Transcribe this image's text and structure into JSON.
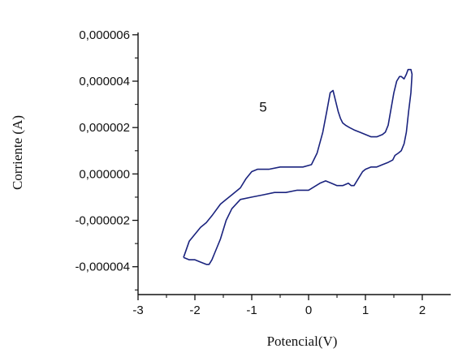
{
  "chart_data": {
    "type": "line",
    "xlabel": "Potencial(V)",
    "ylabel": "Corriente (A)",
    "xlim": [
      -3,
      2.5
    ],
    "ylim": [
      -5.2e-06,
      6.1e-06
    ],
    "x_ticks": [
      -3,
      -2,
      -1,
      0,
      1,
      2
    ],
    "x_tick_labels": [
      "-3",
      "-2",
      "-1",
      "0",
      "1",
      "2"
    ],
    "y_ticks": [
      6e-06,
      4e-06,
      2e-06,
      0.0,
      -2e-06,
      -4e-06
    ],
    "y_tick_labels": [
      "0,000006",
      "0,000004",
      "0,000002",
      "0,000000",
      "-0,000002",
      "-0,000004"
    ],
    "annotations": [
      {
        "text": "5",
        "x": -0.8,
        "y": 2.9e-06
      }
    ],
    "grid": false,
    "line_color": "#1a237e",
    "series": [
      {
        "x": [
          -2.2,
          -2.1,
          -1.9,
          -1.8,
          -1.7,
          -1.55,
          -1.45,
          -1.35,
          -1.2,
          -1.1,
          -1.0,
          -0.9,
          -0.7,
          -0.5,
          -0.3,
          -0.1,
          0.05,
          0.15,
          0.25,
          0.32,
          0.38,
          0.43,
          0.47,
          0.52,
          0.56,
          0.6,
          0.65,
          0.72,
          0.8,
          0.9,
          1.0,
          1.1,
          1.2,
          1.3,
          1.35,
          1.4,
          1.45,
          1.5,
          1.55,
          1.6,
          1.63,
          1.68,
          1.72,
          1.75,
          1.8,
          1.82,
          1.8,
          1.76,
          1.72,
          1.68,
          1.63,
          1.58,
          1.52,
          1.48,
          1.4,
          1.3,
          1.2,
          1.1,
          1.0,
          0.95,
          0.9,
          0.85,
          0.8,
          0.75,
          0.7,
          0.6,
          0.5,
          0.4,
          0.3,
          0.2,
          0.0,
          -0.2,
          -0.4,
          -0.6,
          -0.8,
          -1.0,
          -1.2,
          -1.35,
          -1.45,
          -1.55,
          -1.6,
          -1.65,
          -1.7,
          -1.75,
          -1.8,
          -1.9,
          -2.0,
          -2.1,
          -2.2
        ],
        "y": [
          -3.6e-06,
          -2.9e-06,
          -2.3e-06,
          -2.1e-06,
          -1.8e-06,
          -1.3e-06,
          -1.1e-06,
          -9e-07,
          -6e-07,
          -2e-07,
          1e-07,
          2e-07,
          2e-07,
          3e-07,
          3e-07,
          3e-07,
          4e-07,
          9e-07,
          1.8e-06,
          2.7e-06,
          3.5e-06,
          3.6e-06,
          3.2e-06,
          2.7e-06,
          2.4e-06,
          2.2e-06,
          2.1e-06,
          2e-06,
          1.9e-06,
          1.8e-06,
          1.7e-06,
          1.6e-06,
          1.6e-06,
          1.7e-06,
          1.8e-06,
          2.1e-06,
          2.8e-06,
          3.5e-06,
          4e-06,
          4.2e-06,
          4.2e-06,
          4.1e-06,
          4.3e-06,
          4.5e-06,
          4.5e-06,
          4.3e-06,
          3.5e-06,
          2.7e-06,
          1.8e-06,
          1.3e-06,
          1e-06,
          9e-07,
          8e-07,
          6e-07,
          5e-07,
          4e-07,
          3e-07,
          3e-07,
          2e-07,
          1e-07,
          -1e-07,
          -3e-07,
          -5e-07,
          -5e-07,
          -4e-07,
          -5e-07,
          -5e-07,
          -4e-07,
          -3e-07,
          -4e-07,
          -7e-07,
          -7e-07,
          -8e-07,
          -8e-07,
          -9e-07,
          -1e-06,
          -1.1e-06,
          -1.5e-06,
          -2e-06,
          -2.8e-06,
          -3.1e-06,
          -3.4e-06,
          -3.7e-06,
          -3.9e-06,
          -3.9e-06,
          -3.8e-06,
          -3.7e-06,
          -3.7e-06,
          -3.6e-06
        ]
      }
    ]
  }
}
